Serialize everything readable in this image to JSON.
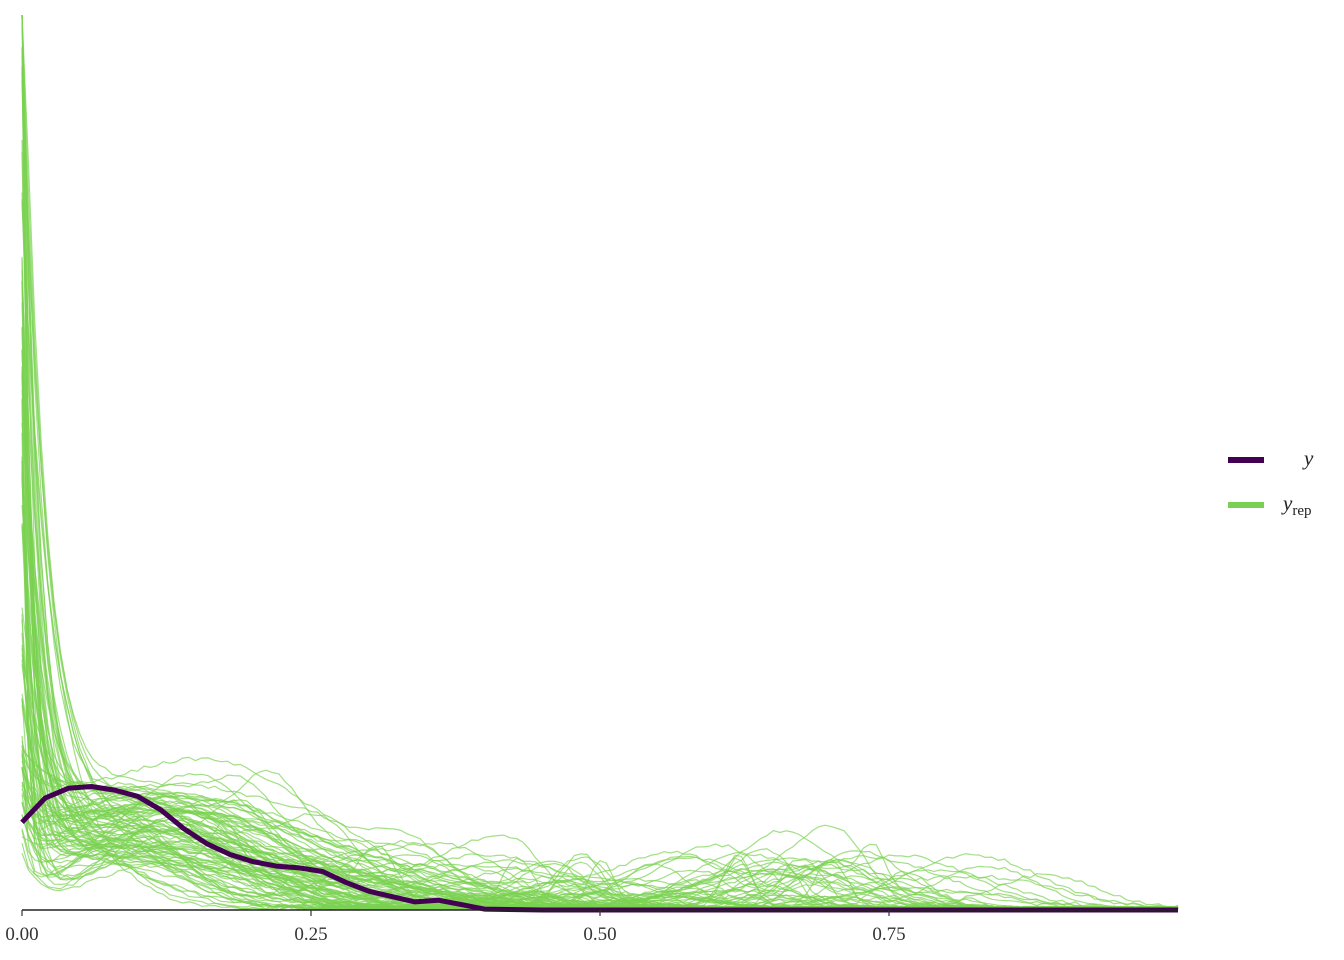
{
  "chart_data": {
    "type": "line",
    "title": "",
    "xlabel": "",
    "ylabel": "",
    "xlim": [
      0,
      1
    ],
    "ylim": [
      0,
      1
    ],
    "x_ticks": [
      "0.00",
      "0.25",
      "0.50",
      "0.75"
    ],
    "x_tick_values": [
      0,
      0.25,
      0.5,
      0.75
    ],
    "y_axis_shown": false,
    "grid": false,
    "legend_position": "right",
    "legend": [
      {
        "key": "y",
        "label": "y",
        "subscript": "",
        "color": "#440154"
      },
      {
        "key": "yrep",
        "label": "y",
        "subscript": "rep",
        "color": "#7AD151"
      }
    ],
    "observed": {
      "name": "y",
      "color": "#440154",
      "x": [
        0,
        0.02,
        0.04,
        0.06,
        0.08,
        0.1,
        0.12,
        0.14,
        0.16,
        0.18,
        0.2,
        0.22,
        0.24,
        0.26,
        0.28,
        0.3,
        0.32,
        0.34,
        0.36,
        0.38,
        0.4,
        0.45,
        0.5,
        0.6,
        0.7,
        0.8,
        0.9,
        1.0
      ],
      "y": [
        0.098,
        0.125,
        0.136,
        0.138,
        0.134,
        0.127,
        0.112,
        0.091,
        0.074,
        0.062,
        0.054,
        0.049,
        0.047,
        0.043,
        0.031,
        0.021,
        0.015,
        0.009,
        0.011,
        0.006,
        0.001,
        0,
        0,
        0,
        0,
        0,
        0,
        0
      ]
    },
    "replicate_summary": {
      "name": "y rep",
      "color": "#7AD151",
      "count": 100,
      "peak_near_zero_max": 1.0,
      "typical_x_extent": [
        0,
        1.0
      ],
      "note_visible_bumps_x": [
        0.48,
        0.66,
        0.75
      ]
    }
  }
}
